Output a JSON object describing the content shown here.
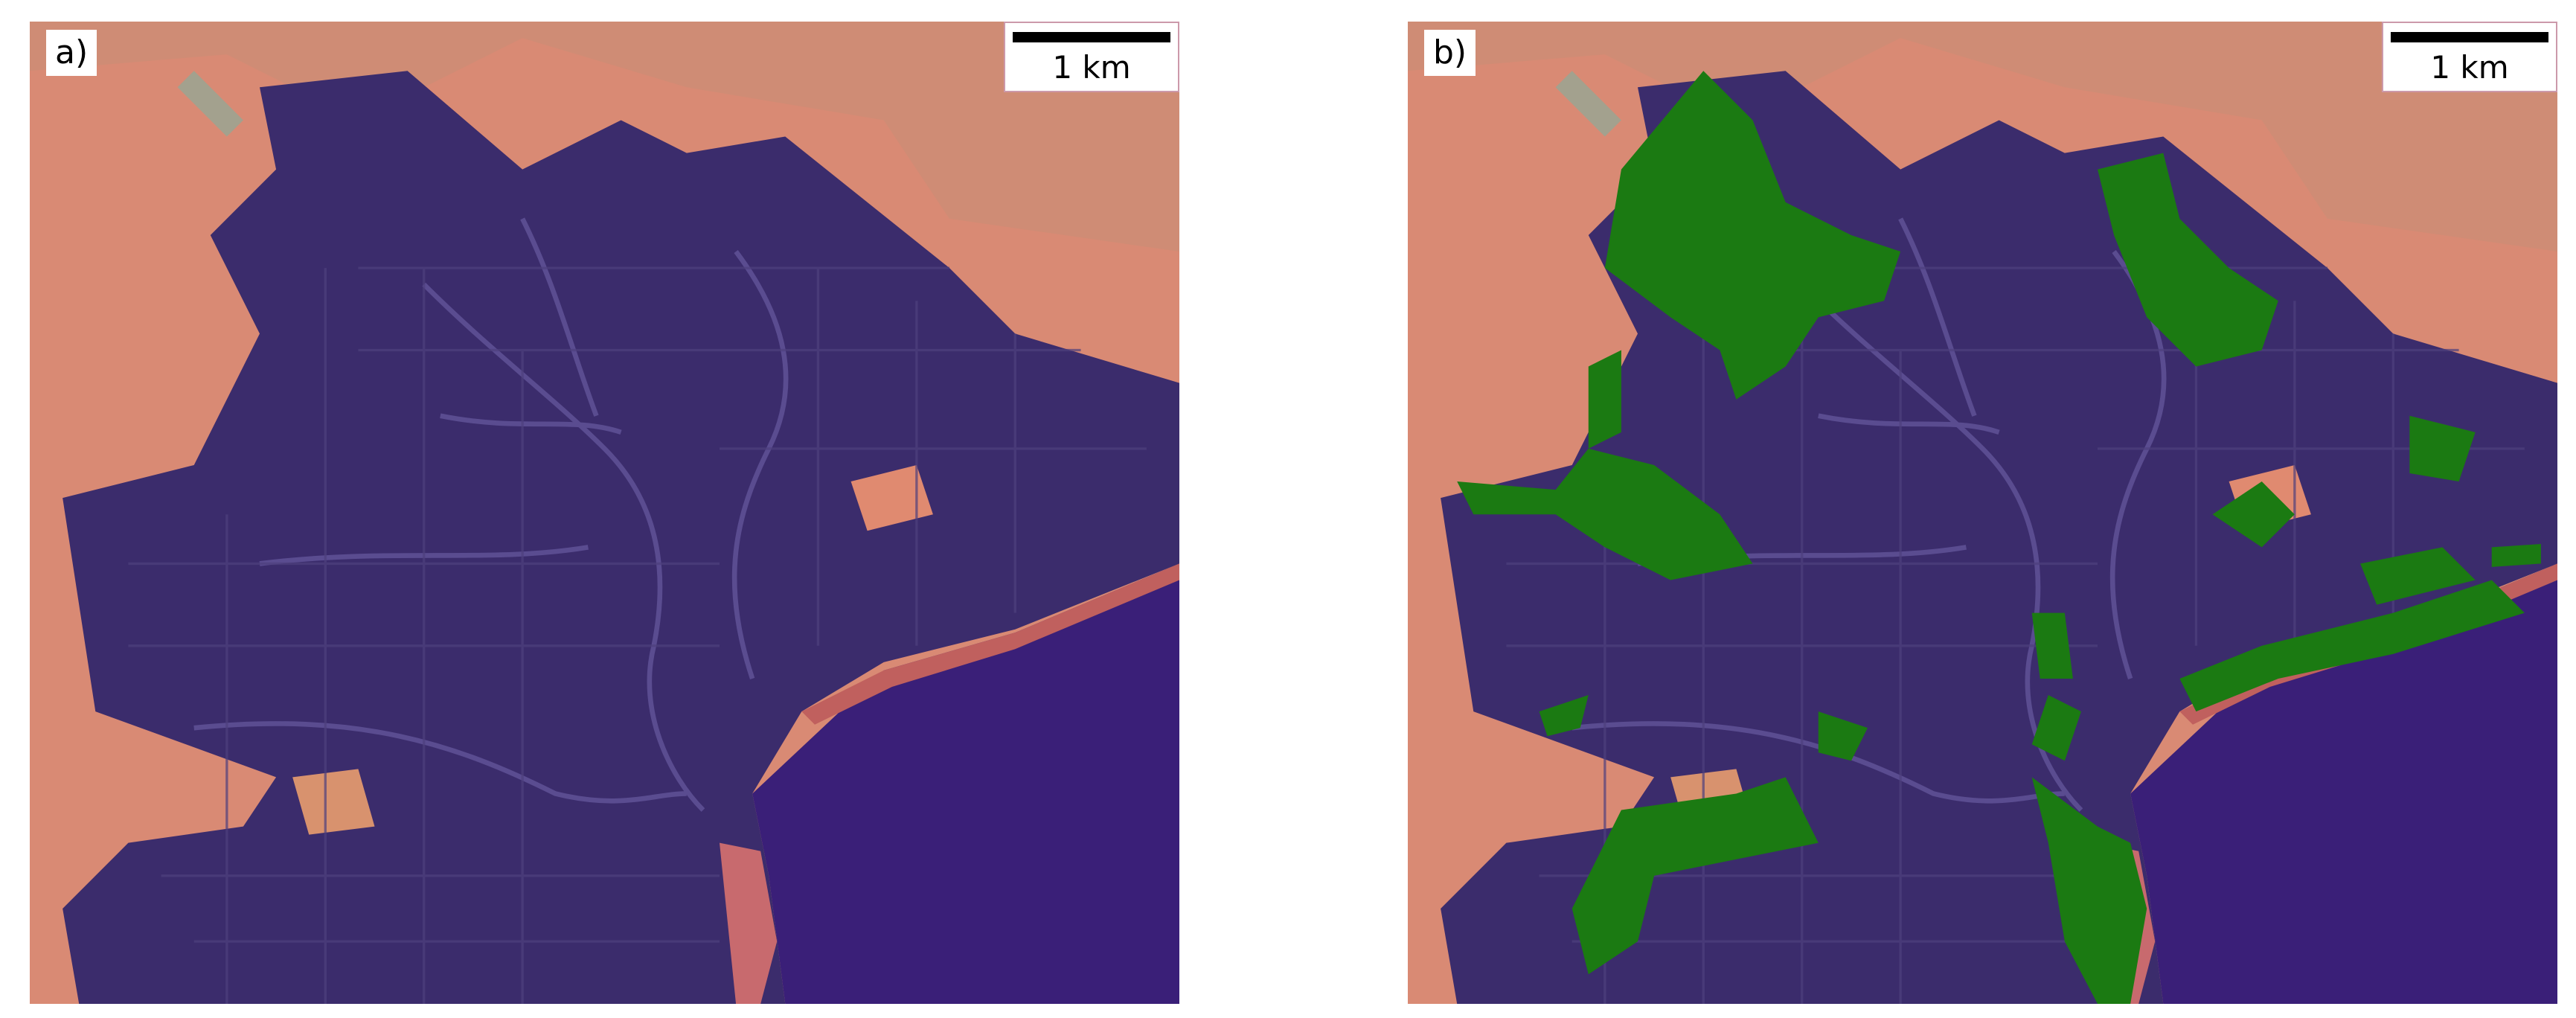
{
  "panels": [
    {
      "label": "a)",
      "scale_bar": "1 km"
    },
    {
      "label": "b)",
      "scale_bar": "1 km"
    }
  ]
}
